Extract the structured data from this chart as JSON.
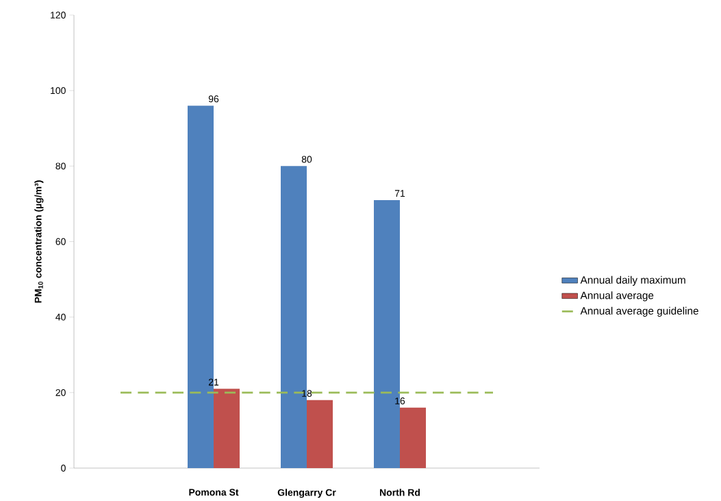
{
  "chart_data": {
    "type": "bar",
    "ylabel": "**PM$_{10}$ concentration (µg/m³)**",
    "categories": [
      null,
      "Pomona St",
      "Glengarry Cr",
      "North Rd",
      null
    ],
    "series": [
      {
        "name": "Annual daily maximum",
        "color": "#4f81bd",
        "values": [
          null,
          96,
          80,
          71,
          null
        ],
        "value_labels": [
          null,
          "96",
          "80",
          "71",
          null
        ]
      },
      {
        "name": "Annual average",
        "color": "#c0504d",
        "values": [
          null,
          21,
          18,
          16,
          null
        ],
        "value_labels": [
          null,
          "21",
          "18",
          "16",
          null
        ]
      },
      {
        "name": "Annual average guideline",
        "type": "line",
        "line_style": "dashed",
        "color": "#9bbb59",
        "values": [
          20,
          20,
          20,
          20,
          20
        ]
      }
    ],
    "ylim": [
      0,
      120
    ],
    "yticks": [
      0,
      20,
      40,
      60,
      80,
      100,
      120
    ],
    "grid": false,
    "legend": "right"
  }
}
